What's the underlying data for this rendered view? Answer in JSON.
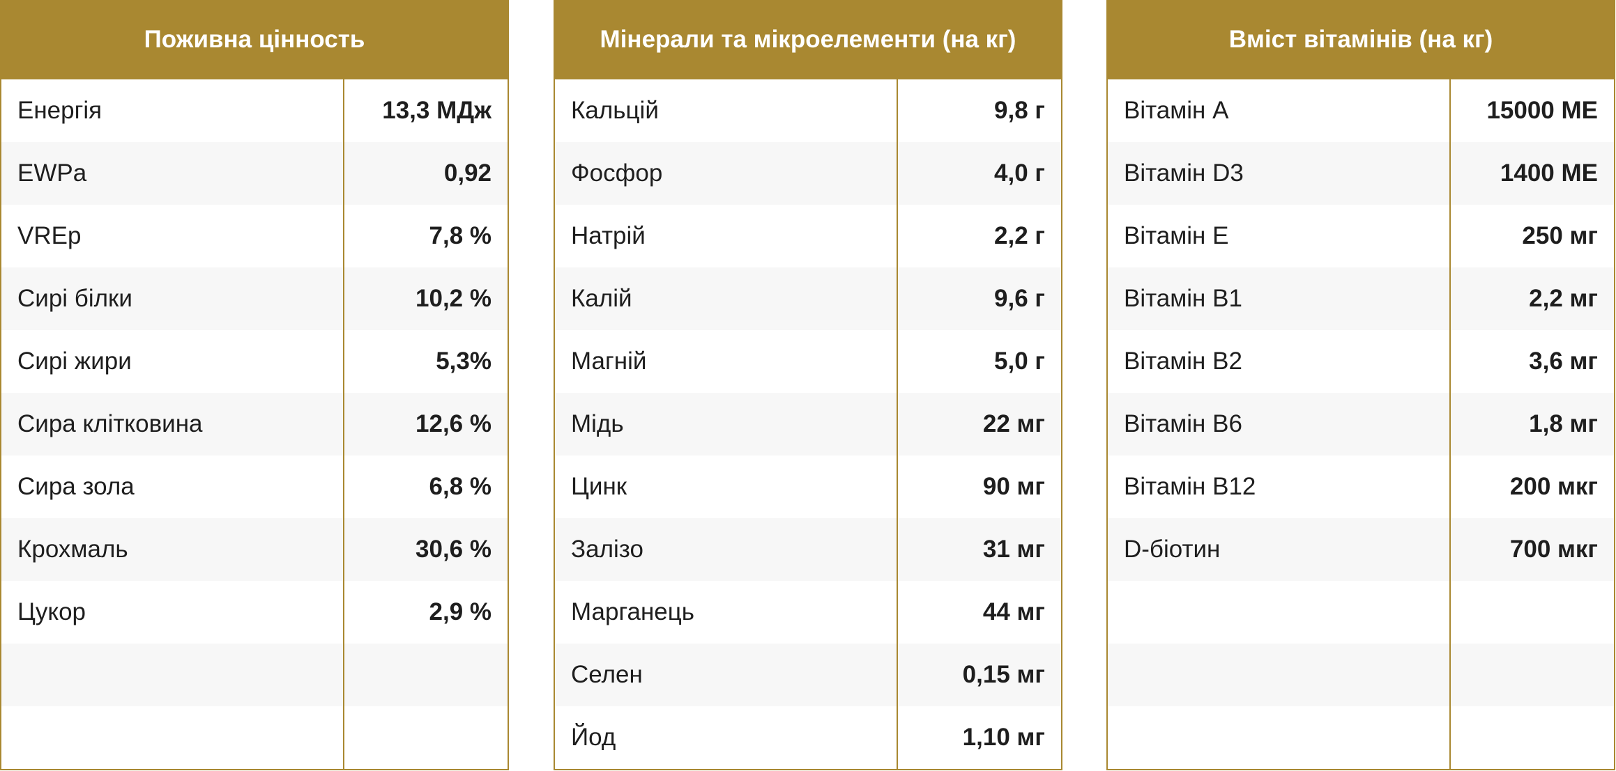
{
  "colors": {
    "header_bg": "#a98831",
    "header_text": "#ffffff",
    "row_alt_bg": "#f7f7f7",
    "border": "#a98831"
  },
  "tables": [
    {
      "title": "Поживна цінность",
      "rows": [
        {
          "name": "Енергія",
          "value": "13,3 МДж"
        },
        {
          "name": "EWPa",
          "value": "0,92"
        },
        {
          "name": "VREp",
          "value": "7,8 %"
        },
        {
          "name": "Сирі білки",
          "value": "10,2 %"
        },
        {
          "name": "Сирі жири",
          "value": "5,3%"
        },
        {
          "name": "Сира клітковина",
          "value": "12,6 %"
        },
        {
          "name": "Сира зола",
          "value": "6,8 %"
        },
        {
          "name": "Крохмаль",
          "value": "30,6 %"
        },
        {
          "name": "Цукор",
          "value": "2,9 %"
        },
        {
          "name": "",
          "value": ""
        },
        {
          "name": "",
          "value": ""
        }
      ]
    },
    {
      "title": "Мінерали та мікроелементи (на кг)",
      "rows": [
        {
          "name": "Кальцій",
          "value": "9,8 г"
        },
        {
          "name": "Фосфор",
          "value": "4,0 г"
        },
        {
          "name": "Натрій",
          "value": "2,2 г"
        },
        {
          "name": "Калій",
          "value": "9,6 г"
        },
        {
          "name": "Магній",
          "value": "5,0 г"
        },
        {
          "name": "Мідь",
          "value": "22 мг"
        },
        {
          "name": "Цинк",
          "value": "90 мг"
        },
        {
          "name": "Залізо",
          "value": "31 мг"
        },
        {
          "name": "Марганець",
          "value": "44 мг"
        },
        {
          "name": "Селен",
          "value": "0,15 мг"
        },
        {
          "name": "Йод",
          "value": "1,10 мг"
        }
      ]
    },
    {
      "title": "Вміст вітамінів (на кг)",
      "rows": [
        {
          "name": "Вітамін А",
          "value": "15000 МЕ"
        },
        {
          "name": "Вітамін D3",
          "value": "1400 МЕ"
        },
        {
          "name": "Вітамін Е",
          "value": "250 мг"
        },
        {
          "name": "Вітамін В1",
          "value": "2,2 мг"
        },
        {
          "name": "Вітамін В2",
          "value": "3,6 мг"
        },
        {
          "name": "Вітамін В6",
          "value": "1,8 мг"
        },
        {
          "name": "Вітамін В12",
          "value": "200 мкг"
        },
        {
          "name": "D-біотин",
          "value": "700 мкг"
        },
        {
          "name": "",
          "value": ""
        },
        {
          "name": "",
          "value": ""
        },
        {
          "name": "",
          "value": ""
        }
      ]
    }
  ]
}
